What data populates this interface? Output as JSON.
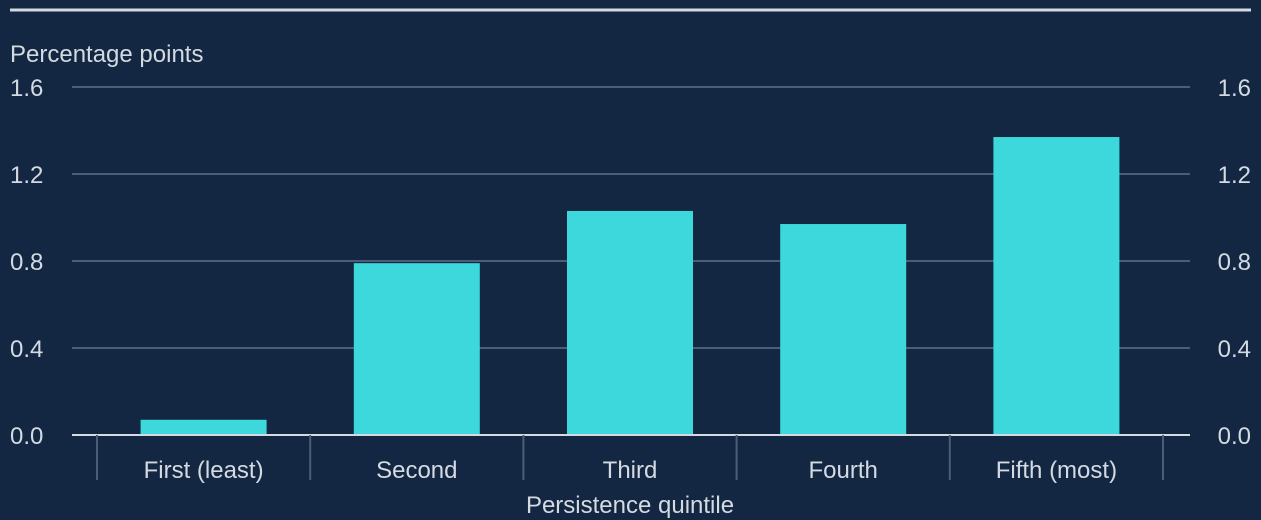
{
  "chart_data": {
    "type": "bar",
    "unit_label": "Percentage points",
    "xlabel": "Persistence quintile",
    "ylabel": "",
    "categories": [
      "First (least)",
      "Second",
      "Third",
      "Fourth",
      "Fifth (most)"
    ],
    "values": [
      0.07,
      0.79,
      1.03,
      0.97,
      1.37
    ],
    "ylim": [
      0,
      1.6
    ],
    "y_ticks": [
      "0.0",
      "0.4",
      "0.8",
      "1.2",
      "1.6"
    ],
    "y_tick_values": [
      0,
      0.4,
      0.8,
      1.2,
      1.6
    ],
    "grid": true,
    "y_axis_sides": "both",
    "legend": "none"
  },
  "colors": {
    "background": "#132742",
    "bar": "#3dd8dc",
    "gridline": "#4b5e78",
    "axis": "#d4dae2",
    "text": "#d4dae2",
    "top_rule": "#d4dae2"
  }
}
